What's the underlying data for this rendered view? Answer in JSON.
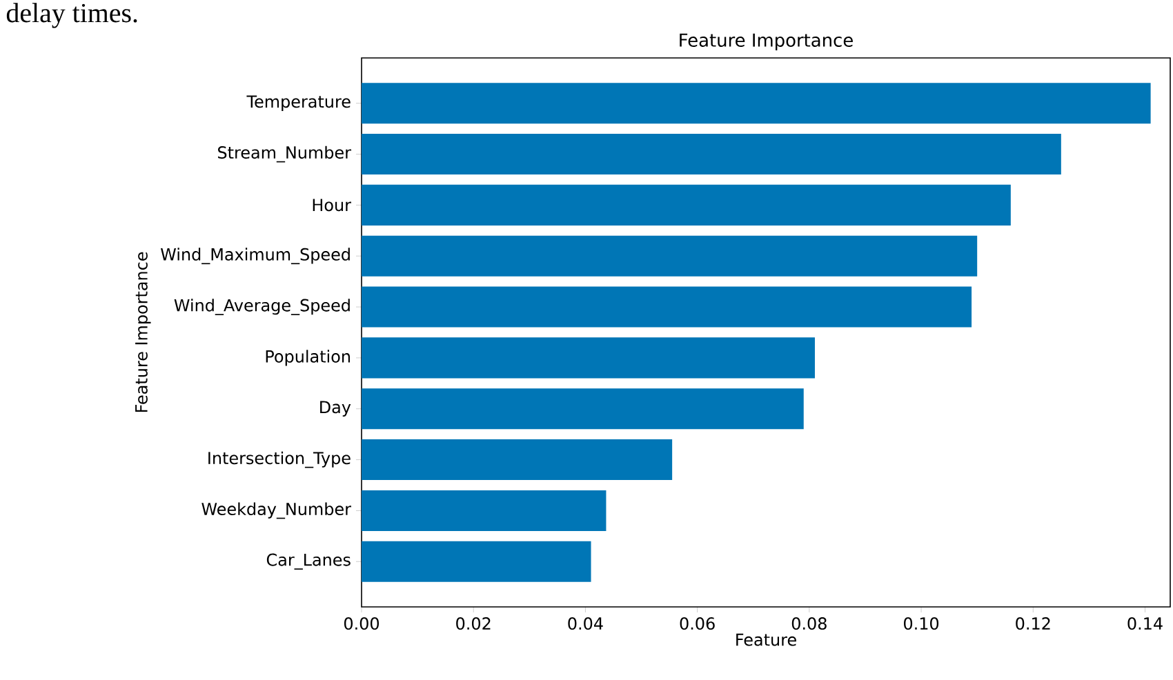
{
  "chart_data": {
    "type": "bar",
    "orientation": "horizontal",
    "title": "Feature Importance",
    "xlabel": "Feature",
    "ylabel": "Feature Importance",
    "categories": [
      "Temperature",
      "Stream_Number",
      "Hour",
      "Wind_Maximum_Speed",
      "Wind_Average_Speed",
      "Population",
      "Day",
      "Intersection_Type",
      "Weekday_Number",
      "Car_Lanes"
    ],
    "values": [
      0.141,
      0.125,
      0.116,
      0.11,
      0.109,
      0.081,
      0.079,
      0.0555,
      0.0437,
      0.041
    ],
    "color": "#0076b6",
    "xlim": [
      0,
      0.1445
    ],
    "xticks": [
      {
        "value": 0,
        "label": "0.00"
      },
      {
        "value": 0.02,
        "label": "0.02"
      },
      {
        "value": 0.04,
        "label": "0.04"
      },
      {
        "value": 0.06,
        "label": "0.06"
      },
      {
        "value": 0.08,
        "label": "0.08"
      },
      {
        "value": 0.1,
        "label": "0.10"
      },
      {
        "value": 0.12,
        "label": "0.12"
      },
      {
        "value": 0.14,
        "label": "0.14"
      }
    ],
    "grid": false,
    "annotations": [
      "delay times."
    ]
  }
}
